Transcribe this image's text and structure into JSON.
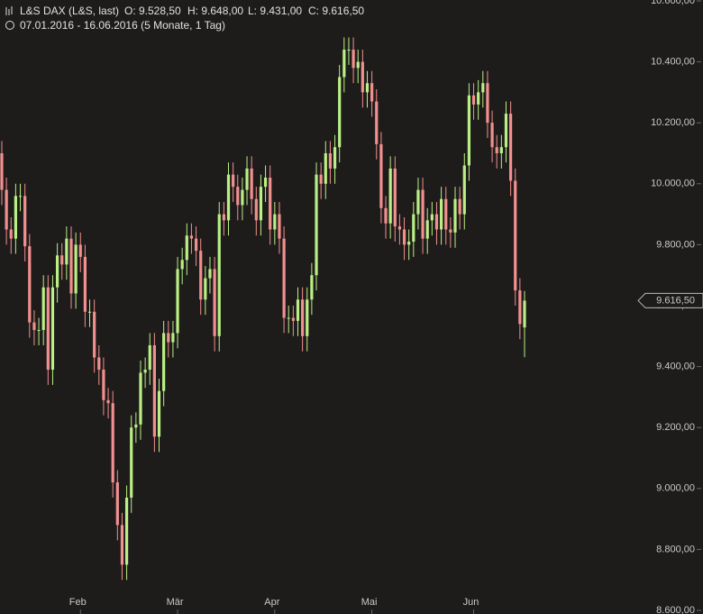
{
  "chart_data": {
    "type": "candlestick",
    "title": "L&S DAX (L&S, last)",
    "ohlc_labels": [
      "O: 9.528,50",
      "H: 9.648,00",
      "L: 9.431,00",
      "C: 9.616,50"
    ],
    "subtitle": "07.01.2016 - 16.06.2016 (5 Monate, 1 Tag)",
    "up_color": "#b9ef84",
    "down_color": "#f28f8f",
    "last": {
      "value": 9616.5,
      "label": "9.616,50"
    },
    "ylim": [
      8600,
      10600
    ],
    "yticks": [
      {
        "value": 8600,
        "label": "8.600,00"
      },
      {
        "value": 8800,
        "label": "8.800,00"
      },
      {
        "value": 9000,
        "label": "9.000,00"
      },
      {
        "value": 9200,
        "label": "9.200,00"
      },
      {
        "value": 9400,
        "label": "9.400,00"
      },
      {
        "value": 9600,
        "label": "9.600,00"
      },
      {
        "value": 9800,
        "label": "9.800,00"
      },
      {
        "value": 10000,
        "label": "10.000,00"
      },
      {
        "value": 10200,
        "label": "10.200,00"
      },
      {
        "value": 10400,
        "label": "10.400,00"
      },
      {
        "value": 10600,
        "label": "10.600,00"
      }
    ],
    "xlim": [
      0,
      113
    ],
    "xticks": [
      {
        "value": 17,
        "label": "Feb"
      },
      {
        "value": 38,
        "label": "Mär"
      },
      {
        "value": 59,
        "label": "Apr"
      },
      {
        "value": 80,
        "label": "Mai"
      },
      {
        "value": 102,
        "label": "Jun"
      }
    ],
    "open": [
      10100,
      9980,
      9850,
      9820,
      9960,
      9960,
      9795,
      9545,
      9520,
      9520,
      9660,
      9390,
      9660,
      9765,
      9735,
      9820,
      9640,
      9800,
      9760,
      9580,
      9580,
      9430,
      9390,
      9290,
      9280,
      9020,
      8880,
      8750,
      8970,
      9200,
      9210,
      9380,
      9390,
      9470,
      9170,
      9320,
      9510,
      9480,
      9510,
      9720,
      9750,
      9830,
      9820,
      9780,
      9620,
      9690,
      9720,
      9500,
      9900,
      9880,
      10030,
      9990,
      9930,
      9980,
      10050,
      9950,
      9880,
      9990,
      10020,
      9850,
      9900,
      9820,
      9560,
      9560,
      9550,
      9620,
      9500,
      9620,
      9700,
      10030,
      10000,
      10100,
      10050,
      10120,
      10350,
      10440,
      10440,
      10380,
      10400,
      10300,
      10330,
      10270,
      10130,
      9920,
      9870,
      10050,
      9860,
      9850,
      9800,
      9810,
      9900,
      9980,
      9820,
      9880,
      9900,
      9850,
      9950,
      9850,
      9840,
      9950,
      9900,
      10060,
      10290,
      10260,
      10300,
      10330,
      10200,
      10120,
      10100,
      10120,
      10230,
      10010,
      9650,
      9528.5
    ],
    "high": [
      10140,
      10020,
      9890,
      10000,
      10000,
      10000,
      9835,
      9585,
      9560,
      9700,
      9700,
      9700,
      9805,
      9805,
      9860,
      9860,
      9840,
      9840,
      9800,
      9620,
      9620,
      9470,
      9430,
      9330,
      9320,
      9060,
      8920,
      9010,
      9240,
      9250,
      9420,
      9430,
      9510,
      9510,
      9360,
      9550,
      9550,
      9550,
      9760,
      9790,
      9870,
      9870,
      9860,
      9820,
      9730,
      9760,
      9760,
      9940,
      9940,
      10070,
      10070,
      10030,
      10020,
      10090,
      10090,
      9990,
      10030,
      10060,
      10060,
      9940,
      9940,
      9860,
      9600,
      9600,
      9660,
      9660,
      9660,
      9740,
      10070,
      10070,
      10140,
      10140,
      10160,
      10390,
      10480,
      10480,
      10480,
      10440,
      10440,
      10370,
      10370,
      10310,
      10170,
      9960,
      10090,
      10090,
      9900,
      9890,
      9850,
      9940,
      10020,
      10020,
      9920,
      9940,
      9940,
      9990,
      9990,
      9890,
      9990,
      9990,
      10100,
      10330,
      10330,
      10340,
      10370,
      10370,
      10240,
      10160,
      10160,
      10270,
      10270,
      10050,
      9690,
      9648
    ],
    "low": [
      9930,
      9800,
      9770,
      9770,
      9910,
      9745,
      9495,
      9470,
      9470,
      9470,
      9340,
      9340,
      9610,
      9685,
      9685,
      9590,
      9590,
      9710,
      9530,
      9530,
      9380,
      9340,
      9240,
      9230,
      8970,
      8830,
      8700,
      8700,
      8920,
      9150,
      9160,
      9330,
      9340,
      9120,
      9120,
      9270,
      9430,
      9430,
      9460,
      9670,
      9700,
      9770,
      9730,
      9570,
      9570,
      9640,
      9450,
      9450,
      9830,
      9830,
      9940,
      9880,
      9880,
      9930,
      9900,
      9830,
      9830,
      9940,
      9800,
      9800,
      9770,
      9510,
      9510,
      9500,
      9500,
      9450,
      9450,
      9570,
      9650,
      9950,
      9950,
      10000,
      10000,
      10070,
      10300,
      10390,
      10330,
      10330,
      10250,
      10250,
      10220,
      10080,
      9870,
      9820,
      9820,
      9810,
      9800,
      9750,
      9750,
      9760,
      9850,
      9770,
      9770,
      9830,
      9800,
      9800,
      9800,
      9790,
      9790,
      9850,
      9850,
      10010,
      10210,
      10210,
      10250,
      10150,
      10070,
      10050,
      10050,
      10070,
      9960,
      9600,
      9490,
      9431
    ],
    "close": [
      9980,
      9850,
      9820,
      9960,
      9960,
      9795,
      9545,
      9520,
      9520,
      9660,
      9390,
      9660,
      9765,
      9735,
      9820,
      9640,
      9800,
      9760,
      9580,
      9580,
      9430,
      9390,
      9290,
      9280,
      9020,
      8880,
      8750,
      8970,
      9200,
      9210,
      9380,
      9390,
      9470,
      9170,
      9320,
      9510,
      9480,
      9510,
      9720,
      9750,
      9830,
      9820,
      9780,
      9620,
      9690,
      9720,
      9500,
      9900,
      9880,
      10030,
      9990,
      9930,
      9980,
      10050,
      9950,
      9880,
      9990,
      10020,
      9850,
      9900,
      9820,
      9560,
      9560,
      9550,
      9620,
      9500,
      9620,
      9700,
      10030,
      10000,
      10100,
      10050,
      10120,
      10350,
      10440,
      10440,
      10380,
      10400,
      10300,
      10330,
      10270,
      10130,
      9920,
      9870,
      10050,
      9860,
      9850,
      9800,
      9810,
      9900,
      9980,
      9820,
      9880,
      9900,
      9850,
      9950,
      9850,
      9840,
      9950,
      9900,
      10060,
      10290,
      10260,
      10300,
      10330,
      10200,
      10120,
      10100,
      10120,
      10230,
      10010,
      9650,
      9540,
      9616.5
    ]
  }
}
